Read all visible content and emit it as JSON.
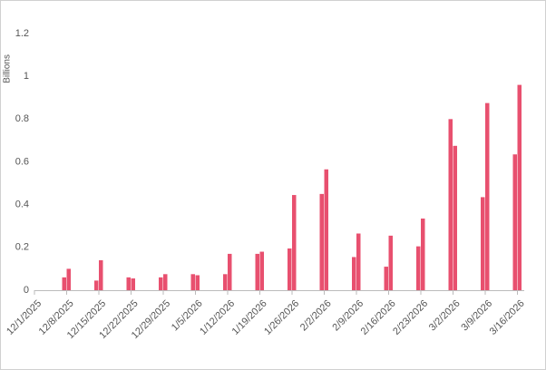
{
  "chart_data": {
    "type": "bar",
    "ylabel": "Billions",
    "categories": [
      "12/1/2025",
      "12/8/2025",
      "12/15/2025",
      "12/22/2025",
      "12/29/2025",
      "1/5/2026",
      "1/12/2026",
      "1/19/2026",
      "1/26/2026",
      "2/2/2026",
      "2/9/2026",
      "2/16/2026",
      "2/23/2026",
      "3/2/2026",
      "3/9/2026",
      "3/16/2026"
    ],
    "series": [
      {
        "color": "#e8506f",
        "values": [
          null,
          0.06,
          0.045,
          0.06,
          0.06,
          0.075,
          0.075,
          0.17,
          0.195,
          0.45,
          0.155,
          0.11,
          0.205,
          0.8,
          0.435,
          0.635
        ]
      },
      {
        "color": "#e8506f",
        "values": [
          null,
          0.1,
          0.14,
          0.055,
          0.075,
          0.07,
          0.17,
          0.18,
          0.445,
          0.565,
          0.265,
          0.255,
          0.335,
          0.675,
          0.875,
          0.96
        ]
      }
    ],
    "ylim": [
      0,
      1.2
    ],
    "yticks": [
      0,
      0.2,
      0.4,
      0.6,
      0.8,
      1,
      1.2
    ],
    "grid": false
  }
}
